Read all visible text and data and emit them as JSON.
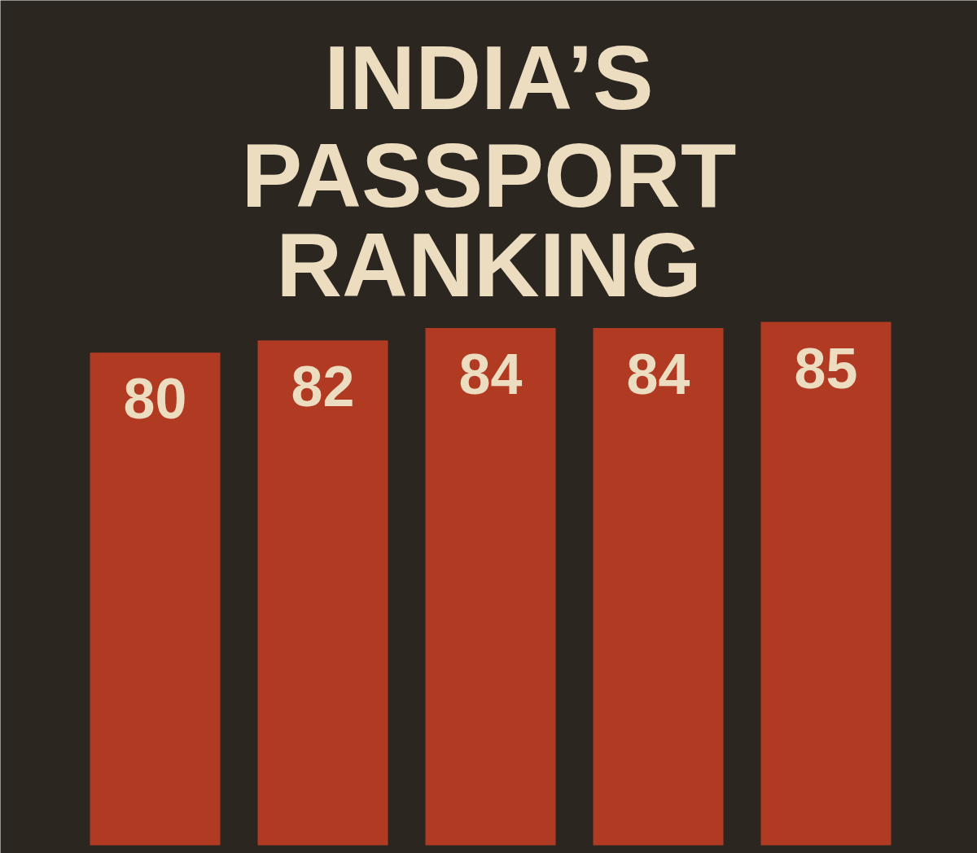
{
  "chart_data": {
    "type": "bar",
    "title": "INDIA’S PASSPORT RANKING",
    "categories": [
      null,
      null,
      null,
      null,
      null
    ],
    "values": [
      80,
      82,
      84,
      84,
      85
    ],
    "data_labels": true,
    "tick_labels": false,
    "color": "#b03a22"
  }
}
